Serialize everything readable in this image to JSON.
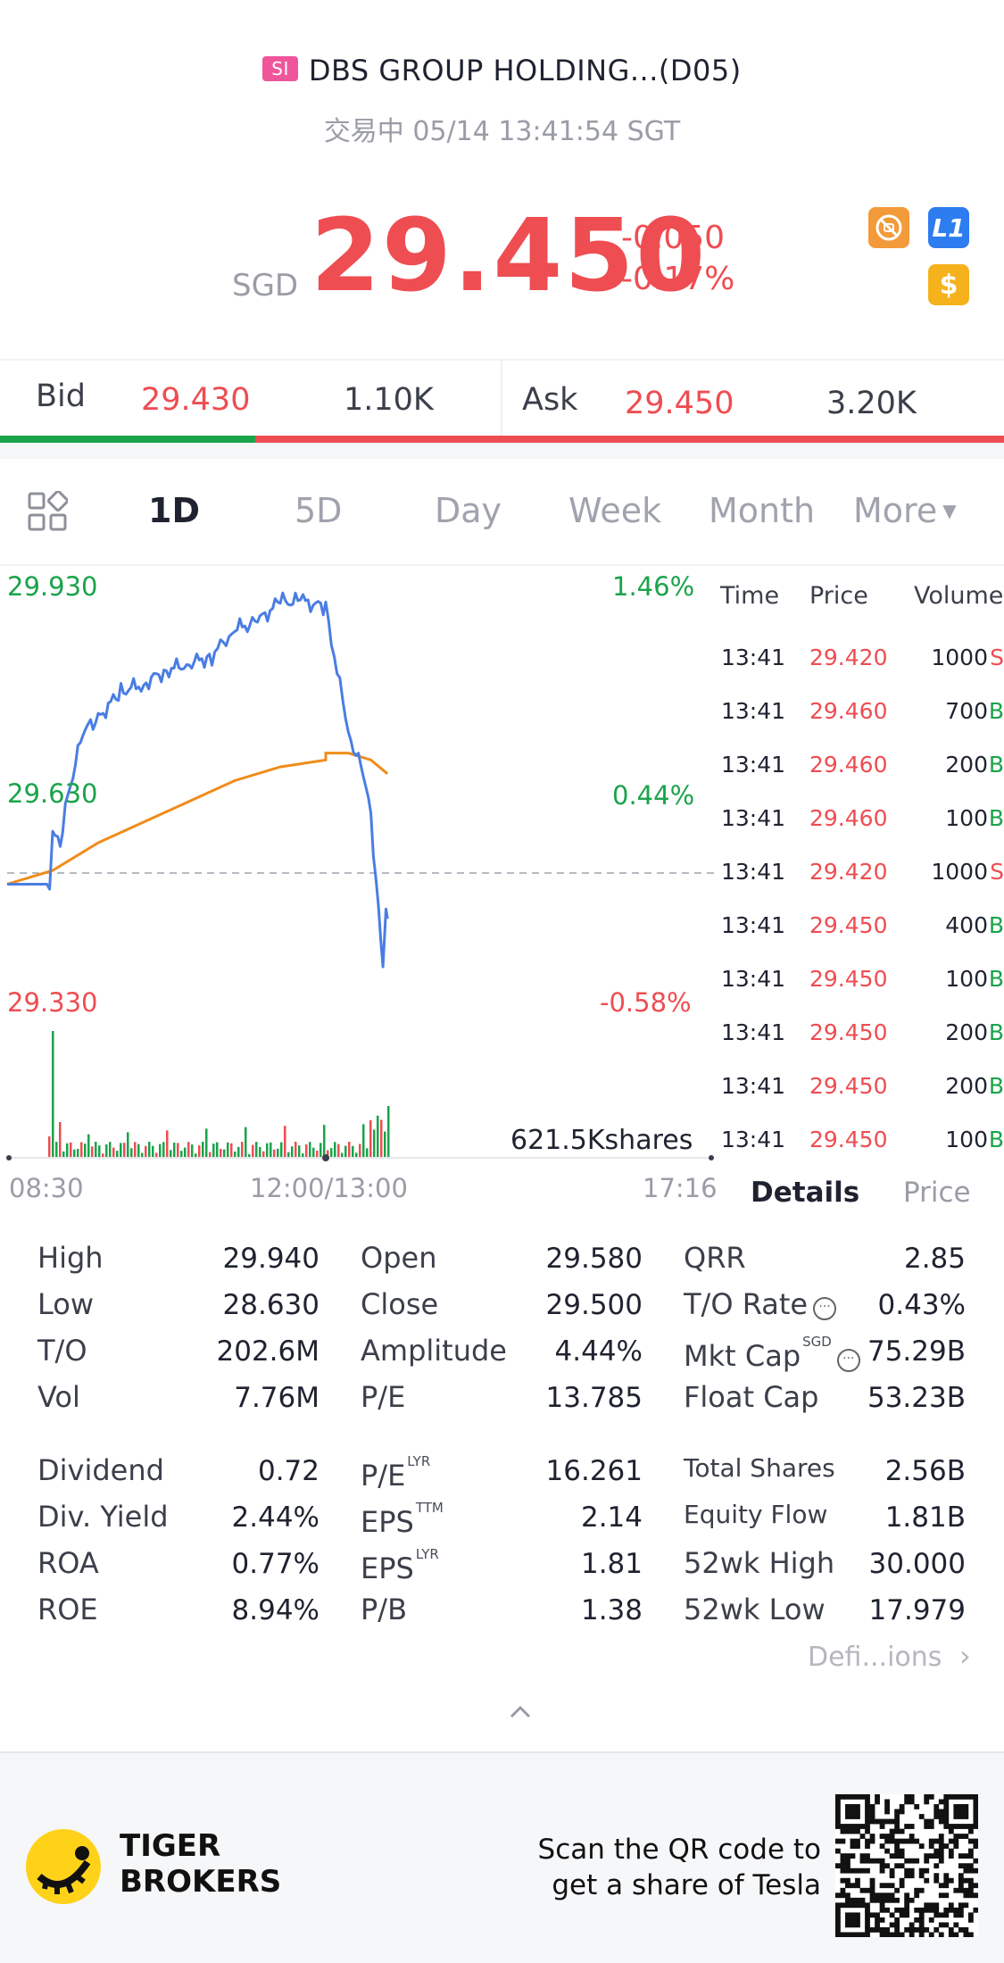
{
  "header": {
    "exchange_badge": "SI",
    "title": "DBS GROUP HOLDING...(D05)",
    "status_line": "交易中 05/14 13:41:54 SGT"
  },
  "quote": {
    "currency": "SGD",
    "price": "29.450",
    "change": "-0.050",
    "change_pct": "-0.17%",
    "icons": [
      "no-short-icon",
      "level1-icon",
      "dollar-icon"
    ],
    "level_label": "L1",
    "dollar_label": "$"
  },
  "bidask": {
    "bid_label": "Bid",
    "bid_price": "29.430",
    "bid_size": "1.10K",
    "ask_label": "Ask",
    "ask_price": "29.450",
    "ask_size": "3.20K",
    "bid_share": 0.254
  },
  "tabs": {
    "items": [
      "1D",
      "5D",
      "Day",
      "Week",
      "Month",
      "More"
    ],
    "active": "1D"
  },
  "chart": {
    "price_high": "29.930",
    "price_mid": "29.630",
    "price_low": "29.330",
    "pct_high": "1.46%",
    "pct_mid": "0.44%",
    "pct_low": "-0.58%",
    "volume_label": "621.5Kshares",
    "time_start": "08:30",
    "time_mid": "12:00/13:00",
    "time_end": "17:16",
    "colors": {
      "price_line": "#4a7de3",
      "avg_line": "#f08c1a",
      "up": "#1aa34a",
      "down": "#ee4d52"
    }
  },
  "chart_data": {
    "type": "line",
    "title": "",
    "xlabel": "",
    "ylabel": "",
    "x_range": [
      "08:30",
      "17:16"
    ],
    "ylim": [
      29.33,
      29.93
    ],
    "prev_close": 29.5,
    "series": [
      {
        "x": [
          "08:30",
          "08:58",
          "09:00",
          "09:05",
          "09:10",
          "09:20",
          "09:30",
          "09:45",
          "10:00",
          "10:15",
          "10:30",
          "10:45",
          "11:00",
          "11:15",
          "11:30",
          "11:45",
          "12:00",
          "13:00",
          "13:15",
          "13:25",
          "13:30",
          "13:35",
          "13:38",
          "13:40",
          "13:41"
        ],
        "values": [
          29.5,
          29.5,
          29.57,
          29.56,
          29.63,
          29.72,
          29.74,
          29.78,
          29.79,
          29.81,
          29.82,
          29.83,
          29.87,
          29.88,
          29.91,
          29.91,
          29.9,
          29.9,
          29.72,
          29.66,
          29.6,
          29.46,
          29.38,
          29.47,
          29.45
        ]
      },
      {
        "x": [
          "08:30",
          "09:00",
          "09:30",
          "10:00",
          "10:30",
          "11:00",
          "11:30",
          "12:00",
          "13:00",
          "13:15",
          "13:30",
          "13:41"
        ],
        "values": [
          29.5,
          29.52,
          29.56,
          29.59,
          29.62,
          29.65,
          29.67,
          29.68,
          29.69,
          29.69,
          29.68,
          29.66
        ]
      }
    ]
  },
  "trades": {
    "headers": [
      "Time",
      "Price",
      "Volume"
    ],
    "rows": [
      {
        "time": "13:41",
        "price": "29.420",
        "vol": "1000",
        "side": "S"
      },
      {
        "time": "13:41",
        "price": "29.460",
        "vol": "700",
        "side": "B"
      },
      {
        "time": "13:41",
        "price": "29.460",
        "vol": "200",
        "side": "B"
      },
      {
        "time": "13:41",
        "price": "29.460",
        "vol": "100",
        "side": "B"
      },
      {
        "time": "13:41",
        "price": "29.420",
        "vol": "1000",
        "side": "S"
      },
      {
        "time": "13:41",
        "price": "29.450",
        "vol": "400",
        "side": "B"
      },
      {
        "time": "13:41",
        "price": "29.450",
        "vol": "100",
        "side": "B"
      },
      {
        "time": "13:41",
        "price": "29.450",
        "vol": "200",
        "side": "B"
      },
      {
        "time": "13:41",
        "price": "29.450",
        "vol": "200",
        "side": "B"
      },
      {
        "time": "13:41",
        "price": "29.450",
        "vol": "100",
        "side": "B"
      }
    ],
    "tab_details": "Details",
    "tab_price": "Price"
  },
  "stats": {
    "col1": [
      {
        "label": "High",
        "value": "29.940"
      },
      {
        "label": "Low",
        "value": "28.630"
      },
      {
        "label": "T/O",
        "value": "202.6M"
      },
      {
        "label": "Vol",
        "value": "7.76M"
      },
      {
        "label": "Dividend",
        "value": "0.72"
      },
      {
        "label": "Div. Yield",
        "value": "2.44%"
      },
      {
        "label": "ROA",
        "value": "0.77%"
      },
      {
        "label": "ROE",
        "value": "8.94%"
      }
    ],
    "col2": [
      {
        "label": "Open",
        "value": "29.580"
      },
      {
        "label": "Close",
        "value": "29.500"
      },
      {
        "label": "Amplitude",
        "value": "4.44%"
      },
      {
        "label": "P/E",
        "value": "13.785"
      },
      {
        "label": "P/E",
        "sup": "LYR",
        "value": "16.261"
      },
      {
        "label": "EPS",
        "sup": "TTM",
        "value": "2.14"
      },
      {
        "label": "EPS",
        "sup": "LYR",
        "value": "1.81"
      },
      {
        "label": "P/B",
        "value": "1.38"
      }
    ],
    "col3": [
      {
        "label": "QRR",
        "value": "2.85"
      },
      {
        "label": "T/O Rate",
        "value": "0.43%"
      },
      {
        "label": "Mkt Cap",
        "sup": "SGD",
        "value": "75.29B"
      },
      {
        "label": "Float Cap",
        "value": "53.23B"
      },
      {
        "label": "Total Shares",
        "value": "2.56B"
      },
      {
        "label": "Equity Flow",
        "value": "1.81B"
      },
      {
        "label": "52wk High",
        "value": "30.000"
      },
      {
        "label": "52wk Low",
        "value": "17.979"
      }
    ],
    "definitions_link": "Defi...ions"
  },
  "footer": {
    "brand_line1": "TIGER",
    "brand_line2": "BROKERS",
    "promo_line1": "Scan the QR code to",
    "promo_line2": "get a share of Tesla"
  }
}
